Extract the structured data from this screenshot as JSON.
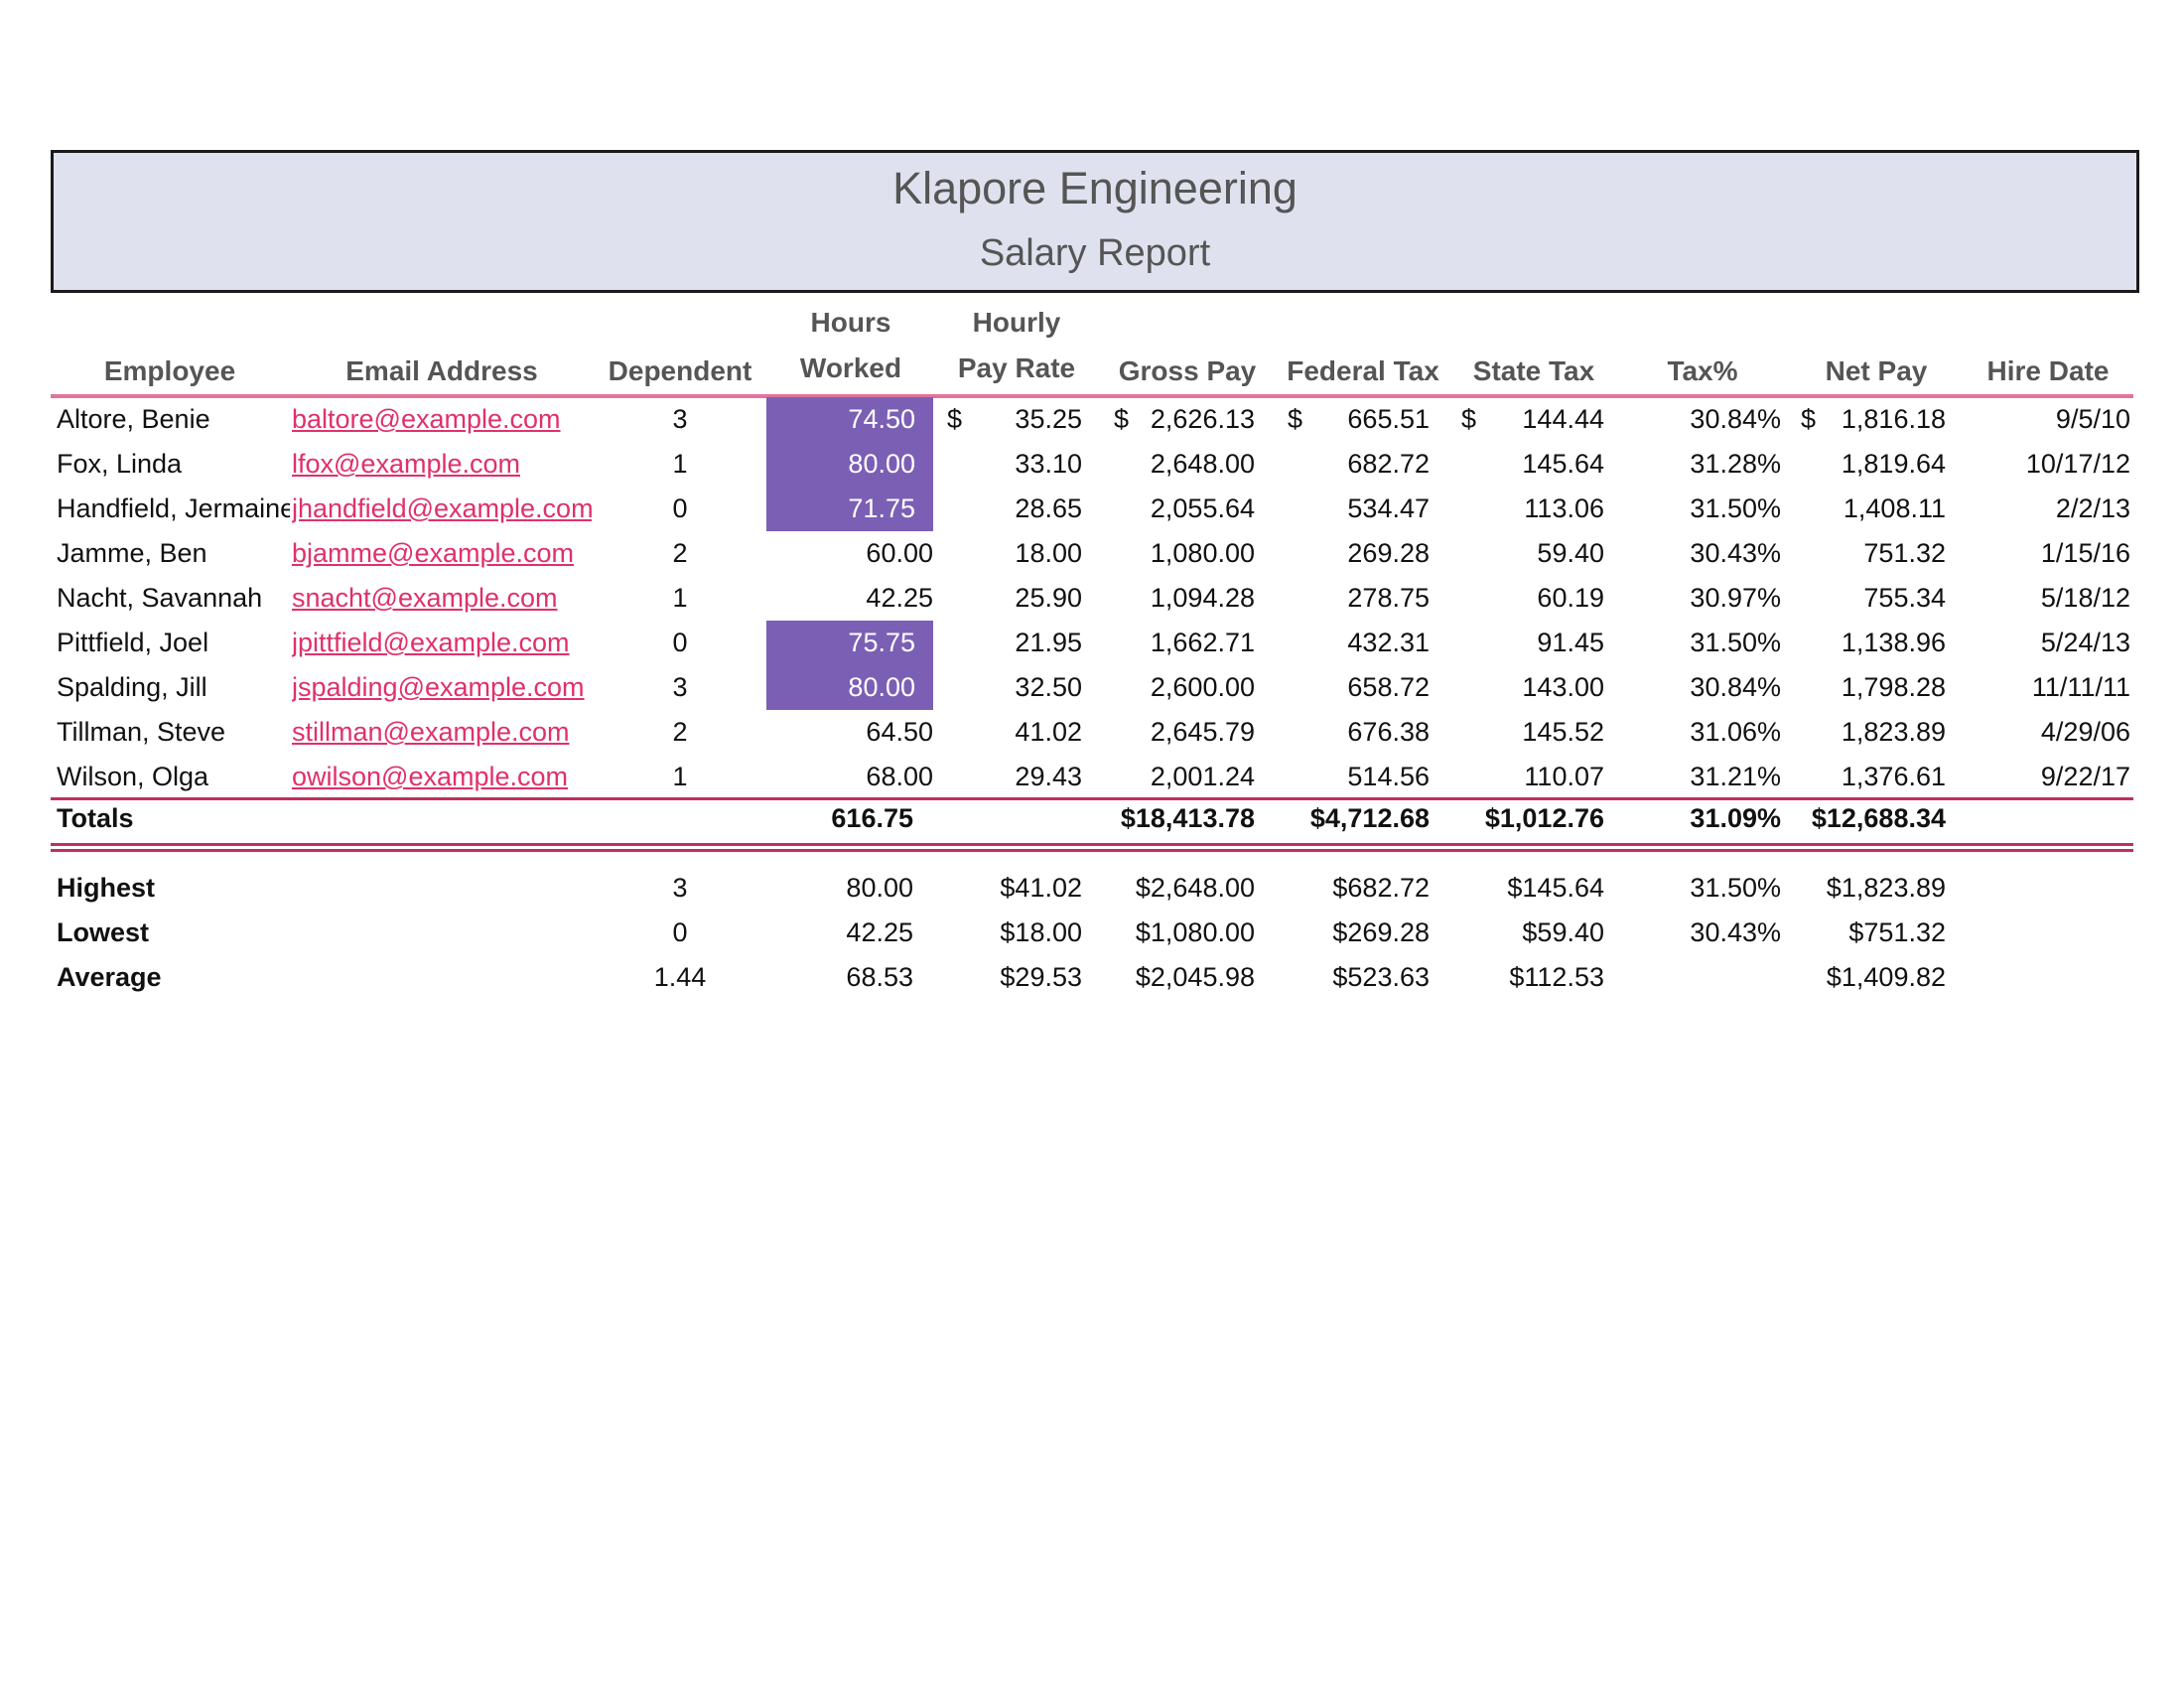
{
  "report": {
    "company": "Klapore Engineering",
    "title": "Salary Report"
  },
  "columns": {
    "employee": "Employee",
    "email": "Email Address",
    "dependent": "Dependent",
    "hours_line1": "Hours",
    "hours_line2": "Worked",
    "rate_line1": "Hourly",
    "rate_line2": "Pay Rate",
    "gross": "Gross Pay",
    "federal": "Federal Tax",
    "state": "State Tax",
    "taxpct": "Tax%",
    "net": "Net Pay",
    "hire": "Hire Date"
  },
  "currency_symbol": "$",
  "rows": [
    {
      "name": "Altore, Benie",
      "email": "baltore@example.com",
      "dep": "3",
      "hours": "74.50",
      "rate": "35.25",
      "gross": "2,626.13",
      "federal": "665.51",
      "state": "144.44",
      "taxpct": "30.84%",
      "net": "1,816.18",
      "hire": "9/5/10",
      "hours_highlight": true
    },
    {
      "name": "Fox, Linda",
      "email": "lfox@example.com",
      "dep": "1",
      "hours": "80.00",
      "rate": "33.10",
      "gross": "2,648.00",
      "federal": "682.72",
      "state": "145.64",
      "taxpct": "31.28%",
      "net": "1,819.64",
      "hire": "10/17/12",
      "hours_highlight": true
    },
    {
      "name": "Handfield, Jermaine",
      "email": "jhandfield@example.com",
      "dep": "0",
      "hours": "71.75",
      "rate": "28.65",
      "gross": "2,055.64",
      "federal": "534.47",
      "state": "113.06",
      "taxpct": "31.50%",
      "net": "1,408.11",
      "hire": "2/2/13",
      "hours_highlight": true
    },
    {
      "name": "Jamme, Ben",
      "email": "bjamme@example.com",
      "dep": "2",
      "hours": "60.00",
      "rate": "18.00",
      "gross": "1,080.00",
      "federal": "269.28",
      "state": "59.40",
      "taxpct": "30.43%",
      "net": "751.32",
      "hire": "1/15/16",
      "hours_highlight": false
    },
    {
      "name": "Nacht, Savannah",
      "email": "snacht@example.com",
      "dep": "1",
      "hours": "42.25",
      "rate": "25.90",
      "gross": "1,094.28",
      "federal": "278.75",
      "state": "60.19",
      "taxpct": "30.97%",
      "net": "755.34",
      "hire": "5/18/12",
      "hours_highlight": false
    },
    {
      "name": "Pittfield, Joel",
      "email": "jpittfield@example.com",
      "dep": "0",
      "hours": "75.75",
      "rate": "21.95",
      "gross": "1,662.71",
      "federal": "432.31",
      "state": "91.45",
      "taxpct": "31.50%",
      "net": "1,138.96",
      "hire": "5/24/13",
      "hours_highlight": true
    },
    {
      "name": "Spalding, Jill",
      "email": "jspalding@example.com",
      "dep": "3",
      "hours": "80.00",
      "rate": "32.50",
      "gross": "2,600.00",
      "federal": "658.72",
      "state": "143.00",
      "taxpct": "30.84%",
      "net": "1,798.28",
      "hire": "11/11/11",
      "hours_highlight": true
    },
    {
      "name": "Tillman, Steve",
      "email": "stillman@example.com",
      "dep": "2",
      "hours": "64.50",
      "rate": "41.02",
      "gross": "2,645.79",
      "federal": "676.38",
      "state": "145.52",
      "taxpct": "31.06%",
      "net": "1,823.89",
      "hire": "4/29/06",
      "hours_highlight": false
    },
    {
      "name": "Wilson, Olga",
      "email": "owilson@example.com",
      "dep": "1",
      "hours": "68.00",
      "rate": "29.43",
      "gross": "2,001.24",
      "federal": "514.56",
      "state": "110.07",
      "taxpct": "31.21%",
      "net": "1,376.61",
      "hire": "9/22/17",
      "hours_highlight": false
    }
  ],
  "totals": {
    "label": "Totals",
    "hours": "616.75",
    "gross": "$18,413.78",
    "federal": "$4,712.68",
    "state": "$1,012.76",
    "taxpct": "31.09%",
    "net": "$12,688.34"
  },
  "stats": [
    {
      "label": "Highest",
      "dep": "3",
      "hours": "80.00",
      "rate": "$41.02",
      "gross": "$2,648.00",
      "federal": "$682.72",
      "state": "$145.64",
      "taxpct": "31.50%",
      "net": "$1,823.89"
    },
    {
      "label": "Lowest",
      "dep": "0",
      "hours": "42.25",
      "rate": "$18.00",
      "gross": "$1,080.00",
      "federal": "$269.28",
      "state": "$59.40",
      "taxpct": "30.43%",
      "net": "$751.32"
    },
    {
      "label": "Average",
      "dep": "1.44",
      "hours": "68.53",
      "rate": "$29.53",
      "gross": "$2,045.98",
      "federal": "$523.63",
      "state": "$112.53",
      "taxpct": "",
      "net": "$1,409.82"
    }
  ],
  "colors": {
    "title_bg": "#dfe2ee",
    "header_text": "#555555",
    "email_link": "#e0306a",
    "rule_pink": "#e3739b",
    "rule_crimson": "#c0305a",
    "hours_highlight": "#7b5fb5"
  }
}
